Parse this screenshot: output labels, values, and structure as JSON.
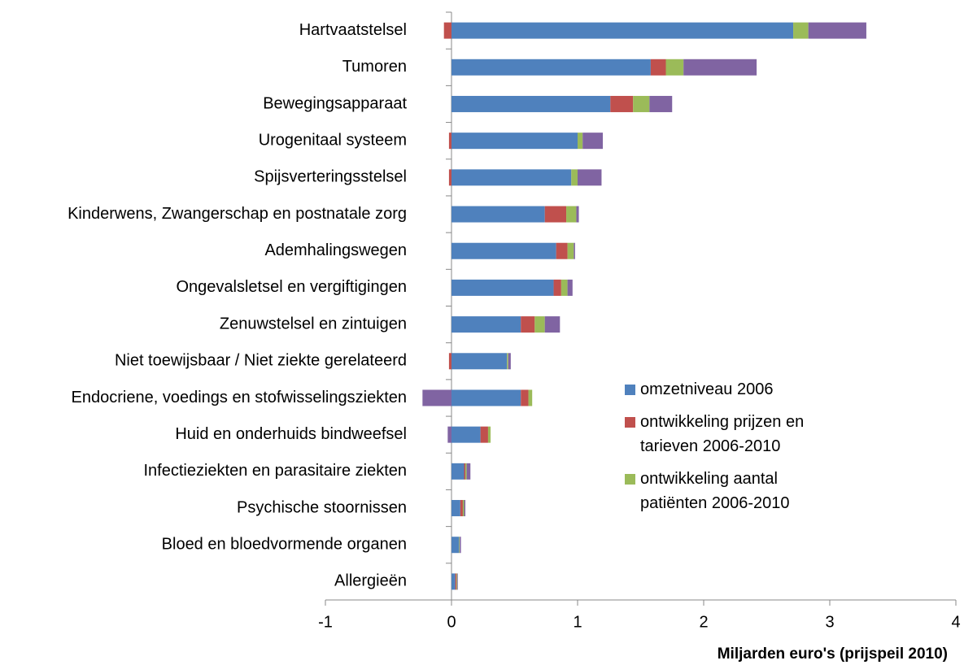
{
  "chart_data": {
    "type": "stacked-barh",
    "xlabel": "Miljarden euro's (prijspeil 2010)",
    "categories": [
      "Hartvaatstelsel",
      "Tumoren",
      "Bewegingsapparaat",
      "Urogenitaal systeem",
      "Spijsverteringsstelsel",
      "Kinderwens, Zwangerschap en postnatale zorg",
      "Ademhalingswegen",
      "Ongevalsletsel en vergiftigingen",
      "Zenuwstelsel en zintuigen",
      "Niet toewijsbaar / Niet ziekte gerelateerd",
      "Endocriene, voedings en stofwisselingsziekten",
      "Huid en onderhuids bindweefsel",
      "Infectieziekten en parasitaire ziekten",
      "Psychische stoornissen",
      "Bloed en bloedvormende organen",
      "Allergieën"
    ],
    "series": [
      {
        "name": "omzetniveau 2006",
        "color": "#4f81bd",
        "values": [
          2.71,
          1.58,
          1.26,
          1.0,
          0.95,
          0.74,
          0.83,
          0.81,
          0.55,
          0.44,
          0.55,
          0.23,
          0.1,
          0.07,
          0.06,
          0.03
        ]
      },
      {
        "name": "ontwikkeling prijzen en tarieven 2006-2010",
        "color": "#c0504d",
        "values": [
          -0.06,
          0.12,
          0.18,
          -0.02,
          -0.02,
          0.17,
          0.09,
          0.06,
          0.11,
          -0.02,
          0.06,
          0.06,
          0.01,
          0.02,
          0,
          0.01
        ]
      },
      {
        "name": "ontwikkeling aantal patiënten 2006-2010",
        "color": "#9bbb59",
        "values": [
          0.12,
          0.14,
          0.13,
          0.04,
          0.05,
          0.08,
          0.05,
          0.05,
          0.08,
          0.01,
          0.03,
          0.02,
          0.01,
          0.01,
          0.005,
          0.005
        ]
      },
      {
        "color": "#8064a2",
        "values": [
          0.46,
          0.58,
          0.18,
          0.16,
          0.19,
          0.02,
          0.01,
          0.04,
          0.12,
          0.02,
          -0.23,
          -0.03,
          0.03,
          0.01,
          0.01,
          0.005
        ]
      }
    ],
    "xlim": [
      -1,
      4
    ],
    "xticks": [
      -1,
      0,
      1,
      2,
      3,
      4
    ],
    "legend": "right"
  }
}
